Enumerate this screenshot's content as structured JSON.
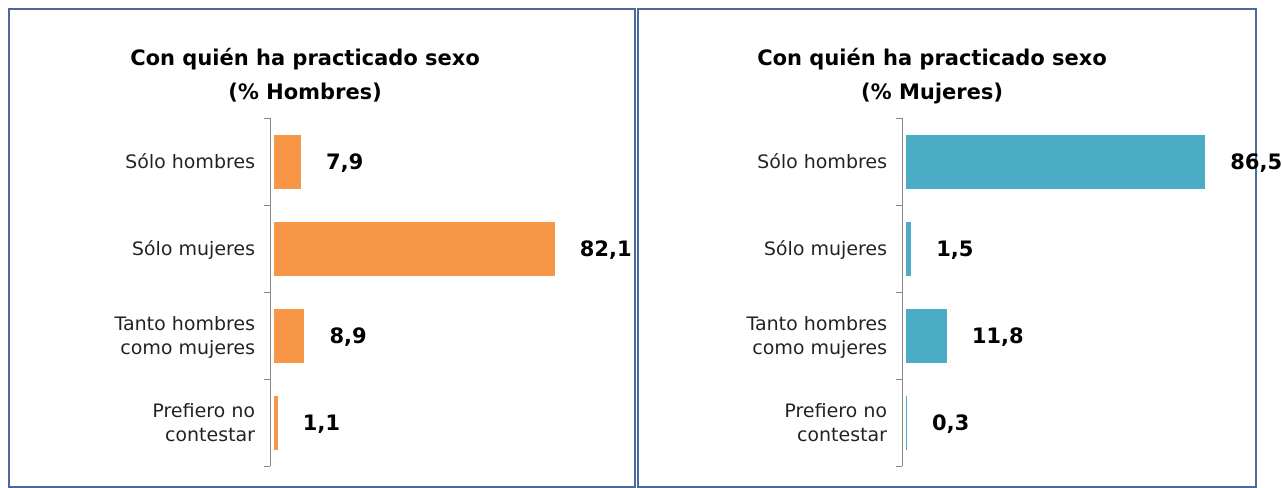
{
  "chart_data": [
    {
      "type": "bar",
      "orientation": "horizontal",
      "title": "Con quién ha practicado sexo",
      "subtitle": "(% Hombres)",
      "categories": [
        "Sólo hombres",
        "Sólo mujeres",
        "Tanto hombres como mujeres",
        "Prefiero no contestar"
      ],
      "values": [
        7.9,
        82.1,
        8.9,
        1.1
      ],
      "value_labels": [
        "7,9",
        "82,1",
        "8,9",
        "1,1"
      ],
      "color": "#f79646"
    },
    {
      "type": "bar",
      "orientation": "horizontal",
      "title": "Con quién ha practicado sexo",
      "subtitle": "(% Mujeres)",
      "categories": [
        "Sólo hombres",
        "Sólo mujeres",
        "Tanto hombres como mujeres",
        "Prefiero no contestar"
      ],
      "values": [
        86.5,
        1.5,
        11.8,
        0.3
      ],
      "value_labels": [
        "86,5",
        "1,5",
        "11,8",
        "0,3"
      ],
      "color": "#4bacc6"
    }
  ]
}
